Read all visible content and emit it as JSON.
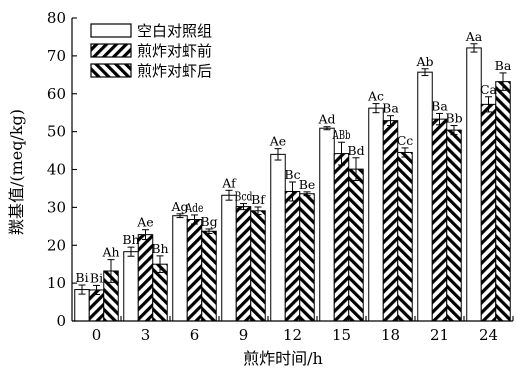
{
  "chart_data": {
    "type": "bar",
    "xlabel": "煎炸时间/h",
    "ylabel": "羰基值/(meq/kg)",
    "categories": [
      "0",
      "3",
      "6",
      "9",
      "12",
      "15",
      "18",
      "21",
      "24"
    ],
    "ylim": [
      0,
      80
    ],
    "yticks": [
      "0",
      "10",
      "20",
      "30",
      "40",
      "50",
      "60",
      "70",
      "80"
    ],
    "legend_position": "top-left",
    "grid": false,
    "series": [
      {
        "name": "空白对照组",
        "pattern": "white",
        "values": [
          8.3,
          18.3,
          27.8,
          33.2,
          44.0,
          50.9,
          56.2,
          65.7,
          72.1
        ],
        "errors": [
          1.2,
          1.2,
          0.5,
          1.3,
          1.5,
          0.4,
          1.2,
          0.9,
          1.1
        ],
        "sig": [
          "Bi",
          "Bh",
          "Ag",
          "Af",
          "Ae",
          "Ad",
          "Ac",
          "Ab",
          "Aa"
        ]
      },
      {
        "name": "煎炸对虾前",
        "pattern": "forward-hatch",
        "values": [
          8.2,
          22.8,
          26.8,
          30.2,
          34.2,
          44.2,
          52.9,
          53.3,
          57.2
        ],
        "errors": [
          1.2,
          1.3,
          1.2,
          0.8,
          2.5,
          3.0,
          1.3,
          1.5,
          2.0
        ],
        "sig": [
          "Bi",
          "Ae",
          "Ade",
          "Bcd",
          "Bc",
          "ABb",
          "Ba",
          "Ba",
          "Ca"
        ]
      },
      {
        "name": "煎炸对虾后",
        "pattern": "back-hatch",
        "values": [
          13.2,
          15.0,
          23.7,
          29.1,
          33.6,
          40.1,
          44.5,
          50.4,
          63.2
        ],
        "errors": [
          3.0,
          2.2,
          0.6,
          1.0,
          0.5,
          3.0,
          1.2,
          1.2,
          2.3
        ],
        "sig": [
          "Ah",
          "Bh",
          "Bg",
          "Bf",
          "Be",
          "Bd",
          "Cc",
          "Bb",
          "Ba"
        ]
      }
    ]
  }
}
